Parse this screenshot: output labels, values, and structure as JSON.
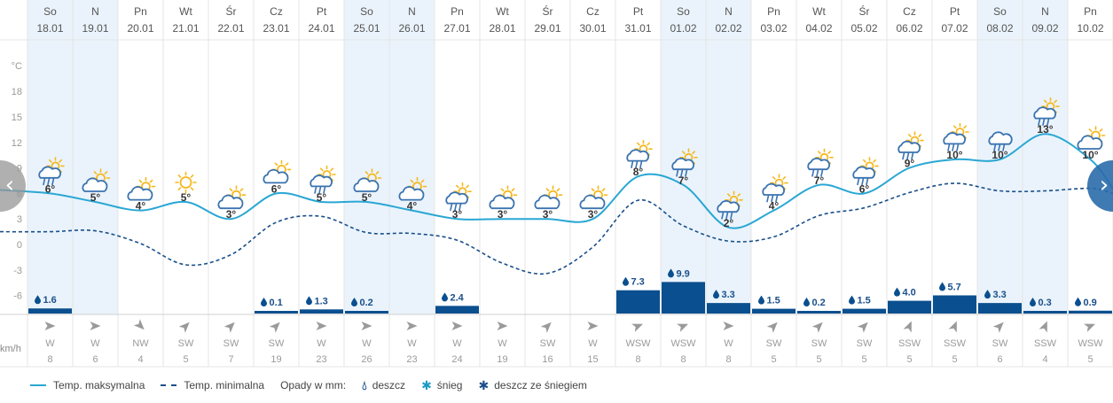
{
  "chart_data": {
    "type": "line",
    "days": [
      {
        "name": "So",
        "date": "18.01",
        "max": 6,
        "min": 1.5,
        "precip": 1.6,
        "wind_dir": "W",
        "wind_speed": 8
      },
      {
        "name": "N",
        "date": "19.01",
        "max": 5,
        "min": 1.6,
        "precip": null,
        "wind_dir": "W",
        "wind_speed": 6
      },
      {
        "name": "Pn",
        "date": "20.01",
        "max": 4,
        "min": 0.1,
        "precip": null,
        "wind_dir": "NW",
        "wind_speed": 4
      },
      {
        "name": "Wt",
        "date": "21.01",
        "max": 5,
        "min": -2.4,
        "precip": null,
        "wind_dir": "SW",
        "wind_speed": 5
      },
      {
        "name": "Śr",
        "date": "22.01",
        "max": 3,
        "min": -1.2,
        "precip": null,
        "wind_dir": "SW",
        "wind_speed": 7
      },
      {
        "name": "Cz",
        "date": "23.01",
        "max": 6,
        "min": 2.6,
        "precip": 0.1,
        "wind_dir": "SW",
        "wind_speed": 19
      },
      {
        "name": "Pt",
        "date": "24.01",
        "max": 5,
        "min": 3.3,
        "precip": 1.3,
        "wind_dir": "W",
        "wind_speed": 23
      },
      {
        "name": "So",
        "date": "25.01",
        "max": 5,
        "min": 1.4,
        "precip": 0.2,
        "wind_dir": "W",
        "wind_speed": 26
      },
      {
        "name": "N",
        "date": "26.01",
        "max": 4,
        "min": 1.3,
        "precip": null,
        "wind_dir": "W",
        "wind_speed": 23
      },
      {
        "name": "Pn",
        "date": "27.01",
        "max": 3,
        "min": 0.5,
        "precip": 2.4,
        "wind_dir": "W",
        "wind_speed": 24
      },
      {
        "name": "Wt",
        "date": "28.01",
        "max": 3,
        "min": -2.2,
        "precip": null,
        "wind_dir": "W",
        "wind_speed": 19
      },
      {
        "name": "Śr",
        "date": "29.01",
        "max": 3,
        "min": -3.4,
        "precip": null,
        "wind_dir": "SW",
        "wind_speed": 16
      },
      {
        "name": "Cz",
        "date": "30.01",
        "max": 3,
        "min": -0.3,
        "precip": null,
        "wind_dir": "W",
        "wind_speed": 15
      },
      {
        "name": "Pt",
        "date": "31.01",
        "max": 8,
        "min": 5.2,
        "precip": 7.3,
        "wind_dir": "WSW",
        "wind_speed": 8
      },
      {
        "name": "So",
        "date": "01.02",
        "max": 7,
        "min": 2.2,
        "precip": 9.9,
        "wind_dir": "WSW",
        "wind_speed": 8
      },
      {
        "name": "N",
        "date": "02.02",
        "max": 2,
        "min": 0.4,
        "precip": 3.3,
        "wind_dir": "W",
        "wind_speed": 8
      },
      {
        "name": "Pn",
        "date": "03.02",
        "max": 4,
        "min": 0.9,
        "precip": 1.5,
        "wind_dir": "SW",
        "wind_speed": 5
      },
      {
        "name": "Wt",
        "date": "04.02",
        "max": 7,
        "min": 3.4,
        "precip": 0.2,
        "wind_dir": "SW",
        "wind_speed": 5
      },
      {
        "name": "Śr",
        "date": "05.02",
        "max": 6,
        "min": 4.3,
        "precip": 1.5,
        "wind_dir": "SW",
        "wind_speed": 5
      },
      {
        "name": "Cz",
        "date": "06.02",
        "max": 9,
        "min": 6.1,
        "precip": 4.0,
        "wind_dir": "SSW",
        "wind_speed": 5
      },
      {
        "name": "Pt",
        "date": "07.02",
        "max": 10,
        "min": 7.2,
        "precip": 5.7,
        "wind_dir": "SSW",
        "wind_speed": 5
      },
      {
        "name": "So",
        "date": "08.02",
        "max": 10,
        "min": 6.3,
        "precip": 3.3,
        "wind_dir": "SW",
        "wind_speed": 6
      },
      {
        "name": "N",
        "date": "09.02",
        "max": 13,
        "min": 6.3,
        "precip": 0.3,
        "wind_dir": "SSW",
        "wind_speed": 4
      },
      {
        "name": "Pn",
        "date": "10.02",
        "max": 10,
        "min": 6.6,
        "precip": 0.9,
        "wind_dir": "WSW",
        "wind_speed": 5
      }
    ],
    "icons": [
      "rain-sun-icon",
      "cloud-sun-icon",
      "cloud-sun-icon",
      "sun-icon",
      "cloud-sun-icon",
      "cloud-sun-icon",
      "rain-sun-icon",
      "cloud-sun-icon",
      "cloud-sun-icon",
      "rain-sun-icon",
      "cloud-sun-icon",
      "cloud-sun-icon",
      "cloud-sun-icon",
      "rain-sun-icon",
      "rain-sun-icon",
      "rain-sun-icon",
      "rain-sun-icon",
      "rain-sun-icon",
      "rain-sun-icon",
      "rain-sun-icon",
      "rain-sun-icon",
      "rain-icon",
      "rain-sun-icon",
      "cloud-sun-icon"
    ],
    "weekend_days": [
      0,
      1,
      7,
      8,
      14,
      15,
      21,
      22
    ],
    "y_unit": "°C",
    "yticks": [
      18,
      15,
      12,
      9,
      6,
      3,
      0,
      -3,
      -6
    ],
    "wind_unit": "km/h",
    "colors": {
      "max": "#2aa7d4",
      "min": "#1a4f8a",
      "precip": "#0a4f8f",
      "weekend": "#eaf3fb",
      "sun": "#f5b81e",
      "cloud": "#3a73b0"
    }
  },
  "legend": {
    "max_label": "Temp. maksymalna",
    "min_label": "Temp. minimalna",
    "precip_title": "Opady w mm:",
    "rain": "deszcz",
    "snow": "śnieg",
    "mixed": "deszcz ze śniegiem"
  },
  "nav": {
    "prev": "‹",
    "next": "›"
  }
}
